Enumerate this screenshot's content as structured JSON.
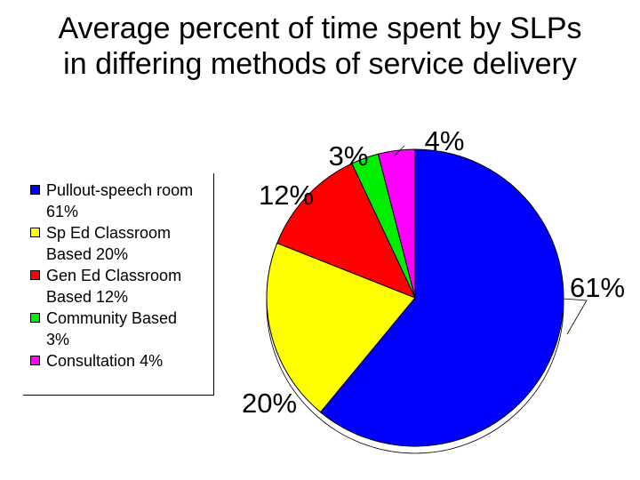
{
  "title_lines": [
    "Average percent of time spent by SLPs",
    "in differing methods of service delivery"
  ],
  "chart_data": {
    "type": "pie",
    "title": "Average percent of time spent by SLPs in differing methods of service delivery",
    "legend_position": "left",
    "slices": [
      {
        "legend": "Pullout-speech room 61%",
        "legend_lines": [
          "Pullout-speech room",
          "61%"
        ],
        "value": 61,
        "label": "61%",
        "color": "#0000ff"
      },
      {
        "legend": "Sp Ed Classroom Based 20%",
        "legend_lines": [
          "Sp Ed Classroom",
          "Based 20%"
        ],
        "value": 20,
        "label": "20%",
        "color": "#ffff00"
      },
      {
        "legend": "Gen Ed Classroom Based 12%",
        "legend_lines": [
          "Gen Ed Classroom",
          "Based 12%"
        ],
        "value": 12,
        "label": "12%",
        "color": "#ff0000"
      },
      {
        "legend": "Community Based 3%",
        "legend_lines": [
          "Community Based",
          "3%"
        ],
        "value": 3,
        "label": "3%",
        "color": "#00ee00"
      },
      {
        "legend": "Consultation 4%",
        "legend_lines": [
          "Consultation 4%"
        ],
        "value": 4,
        "label": "4%",
        "color": "#ff00ff"
      }
    ]
  }
}
